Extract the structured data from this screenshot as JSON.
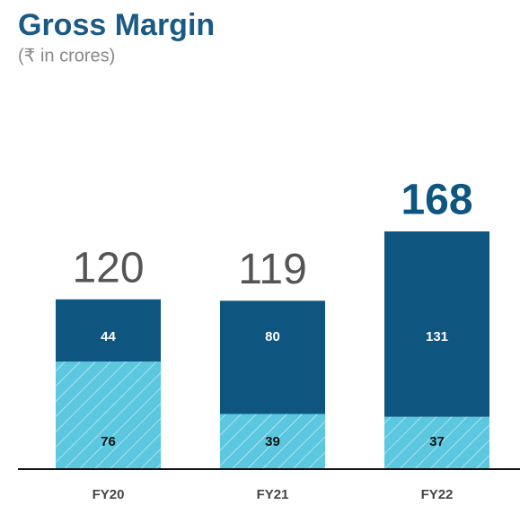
{
  "chart_data": {
    "type": "stacked-bar",
    "title": "Gross Margin",
    "subtitle": "(₹ in crores)",
    "categories": [
      "FY20",
      "FY21",
      "FY22"
    ],
    "series": [
      {
        "color": "#5bc8e0",
        "hatch": true,
        "values": [
          76,
          39,
          37
        ]
      },
      {
        "color": "#0e5580",
        "hatch": false,
        "values": [
          44,
          80,
          131
        ]
      }
    ],
    "totals": [
      120,
      119,
      168
    ],
    "highlight_index": 2
  }
}
